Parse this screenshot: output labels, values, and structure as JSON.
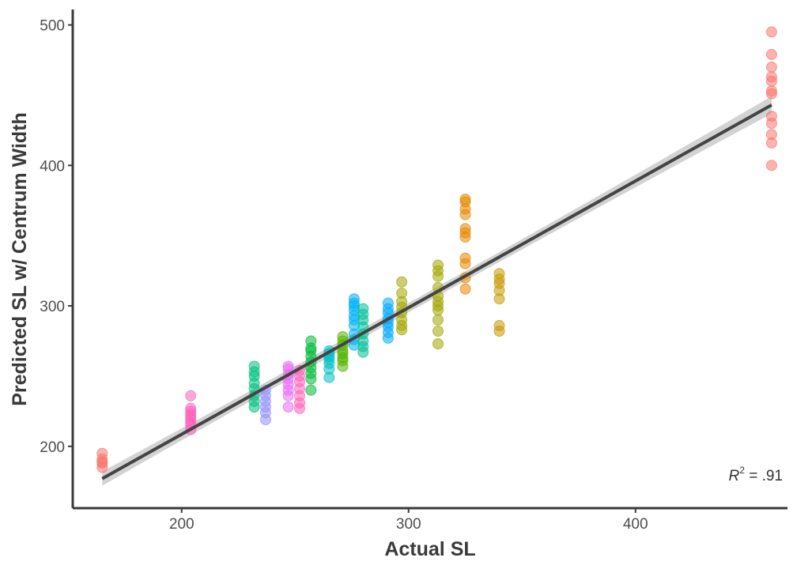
{
  "chart_data": {
    "type": "scatter",
    "title": "",
    "xlabel": "Actual SL",
    "ylabel": "Predicted SL w/ Centrum Width",
    "xlim": [
      152,
      467
    ],
    "ylim": [
      156,
      511
    ],
    "x_ticks": [
      200,
      300,
      400
    ],
    "y_ticks": [
      200,
      300,
      400,
      500
    ],
    "grid": false,
    "legend": "none",
    "annotation": {
      "symbol": "R",
      "exponent": "2",
      "value": " = .91"
    },
    "fit_line": {
      "x": [
        165,
        460
      ],
      "y": [
        177,
        443
      ],
      "ci_color": "#c8c8c8",
      "color": "#444444"
    },
    "groups": [
      {
        "x": 165,
        "color": "#F8766D",
        "y": [
          185,
          189,
          191,
          195,
          188
        ]
      },
      {
        "x": 204,
        "color": "#FF62BC",
        "y": [
          212,
          215,
          217,
          219,
          221,
          223,
          225,
          227,
          236
        ]
      },
      {
        "x": 232,
        "color": "#00BF7D",
        "y": [
          228,
          232,
          236,
          241,
          245,
          250,
          253,
          257
        ]
      },
      {
        "x": 237,
        "color": "#9590FF",
        "y": [
          219,
          224,
          228,
          232,
          236,
          240
        ]
      },
      {
        "x": 247,
        "color": "#E76BF3",
        "y": [
          228,
          236,
          240,
          244,
          248,
          251,
          255,
          257
        ]
      },
      {
        "x": 252,
        "color": "#FF62BC",
        "y": [
          227,
          231,
          236,
          241,
          246,
          250,
          254
        ]
      },
      {
        "x": 257,
        "color": "#00BA38",
        "y": [
          240,
          248,
          252,
          256,
          260,
          264,
          268,
          270,
          275
        ]
      },
      {
        "x": 265,
        "color": "#00BFC4",
        "y": [
          249,
          255,
          259,
          262,
          264,
          266,
          268
        ]
      },
      {
        "x": 271,
        "color": "#53B400",
        "y": [
          257,
          261,
          263,
          266,
          268,
          272,
          275,
          278
        ]
      },
      {
        "x": 276,
        "color": "#00B0F6",
        "y": [
          272,
          276,
          280,
          286,
          290,
          293,
          297,
          300,
          302,
          305
        ]
      },
      {
        "x": 280,
        "color": "#00C094",
        "y": [
          267,
          271,
          275,
          280,
          285,
          290,
          294,
          298
        ]
      },
      {
        "x": 291,
        "color": "#00A9FF",
        "y": [
          277,
          281,
          285,
          288,
          291,
          295,
          298,
          302
        ]
      },
      {
        "x": 297,
        "color": "#A3A500",
        "y": [
          283,
          286,
          290,
          295,
          299,
          303,
          309,
          317
        ]
      },
      {
        "x": 313,
        "color": "#A3A500",
        "y": [
          273,
          282,
          290,
          297,
          300,
          303,
          307,
          313,
          321,
          325,
          329
        ]
      },
      {
        "x": 325,
        "color": "#E58700",
        "y": [
          312,
          320,
          330,
          334,
          349,
          352,
          355,
          365,
          369,
          374,
          376
        ]
      },
      {
        "x": 340,
        "color": "#C99800",
        "y": [
          282,
          286,
          305,
          311,
          316,
          319,
          323
        ]
      },
      {
        "x": 460,
        "color": "#F8766D",
        "y": [
          400,
          416,
          422,
          430,
          435,
          451,
          453,
          460,
          463,
          470,
          479,
          495
        ]
      }
    ]
  }
}
